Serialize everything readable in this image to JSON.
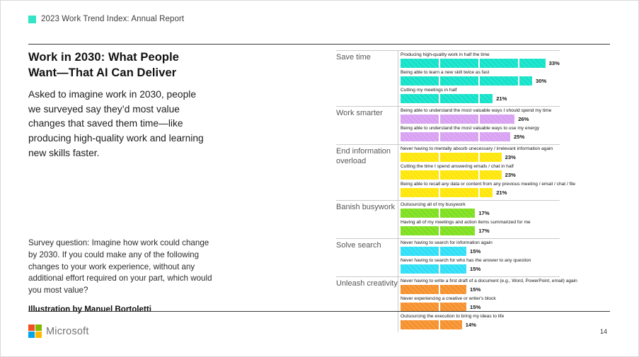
{
  "header": {
    "brand": "2023 Work Trend Index: Annual Report",
    "accent_color": "#33E4C6"
  },
  "left": {
    "title": "Work in 2030: What People Want—That AI Can Deliver",
    "intro": "Asked to imagine work in 2030, people we surveyed say they’d most value changes that saved them time—like producing high-quality work and learning new skills faster.",
    "survey_question": "Survey question: Imagine how work could change by 2030. If you could make any of the following changes to your work experience, without any additional effort required on your part, which would you most value?",
    "credit": "Illustration by Manuel Bortoletti"
  },
  "chart_data": {
    "type": "bar",
    "orientation": "horizontal",
    "unit": "%",
    "xlim": [
      0,
      35
    ],
    "value_labels": "outside-end",
    "grid": false,
    "legend": "none",
    "groups": [
      {
        "category": "Save time",
        "color": "#12E2C9",
        "items": [
          {
            "label": "Producing high-quality work in half the time",
            "value": 33
          },
          {
            "label": "Being able to learn a new skill twice as fast",
            "value": 30
          },
          {
            "label": "Cutting my meetings in half",
            "value": 21
          }
        ]
      },
      {
        "category": "Work smarter",
        "color": "#D8A1F2",
        "items": [
          {
            "label": "Being able to understand the most valuable ways I should spend my time",
            "value": 26
          },
          {
            "label": "Being able to understand the most valuable ways to use my energy",
            "value": 25
          }
        ]
      },
      {
        "category": "End information overload",
        "color": "#FFE608",
        "items": [
          {
            "label": "Never having to mentally absorb unecessary / irrelevant information again",
            "value": 23
          },
          {
            "label": "Cutting the time I spend answering emails / chat in half",
            "value": 23
          },
          {
            "label": "Being able to recall any data or content from any previous meeting / email / chat / file",
            "value": 21
          }
        ]
      },
      {
        "category": "Banish busywork",
        "color": "#7DDF1D",
        "items": [
          {
            "label": "Outsourcing all of my busywork",
            "value": 17
          },
          {
            "label": "Having all of my meetings and action items summarized for me",
            "value": 17
          }
        ]
      },
      {
        "category": "Solve search",
        "color": "#2EDFF6",
        "items": [
          {
            "label": "Never having to search for information again",
            "value": 15
          },
          {
            "label": "Never having to search for who has the answer to any question",
            "value": 15
          }
        ]
      },
      {
        "category": "Unleash creativity",
        "color": "#F6912C",
        "items": [
          {
            "label": "Never having to write a first draft of a document (e.g., Word, PowerPoint, email) again",
            "value": 15
          },
          {
            "label": "Never experiencing a creative or writer's block",
            "value": 15
          },
          {
            "label": "Outsourcing the execution to bring my ideas to life",
            "value": 14
          }
        ]
      }
    ]
  },
  "footer": {
    "brand": "Microsoft",
    "page": "14",
    "logo_colors": [
      "#F25022",
      "#7FBA00",
      "#00A4EF",
      "#FFB900"
    ]
  }
}
